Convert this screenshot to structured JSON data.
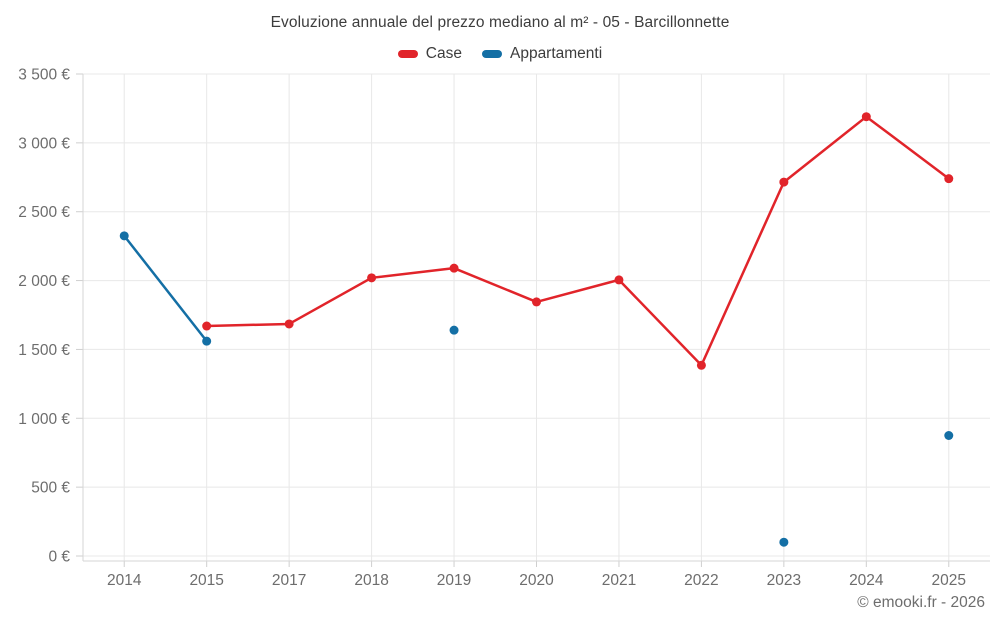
{
  "chart_data": {
    "type": "line",
    "title": "Evoluzione annuale del prezzo mediano al m² - 05 - Barcillonnette",
    "categories": [
      "2014",
      "2015",
      "2017",
      "2018",
      "2019",
      "2020",
      "2021",
      "2022",
      "2023",
      "2024",
      "2025"
    ],
    "series": [
      {
        "name": "Case",
        "color": "#e1242a",
        "values": [
          null,
          1670,
          1685,
          2020,
          2090,
          1845,
          2005,
          1385,
          2715,
          3190,
          2740
        ]
      },
      {
        "name": "Appartamenti",
        "color": "#146fa5",
        "values": [
          2325,
          1560,
          null,
          null,
          1640,
          null,
          null,
          null,
          100,
          null,
          875
        ]
      }
    ],
    "ylim": [
      0,
      3500
    ],
    "y_step": 500,
    "y_tick_labels": [
      "0 €",
      "500 €",
      "1 000 €",
      "1 500 €",
      "2 000 €",
      "2 500 €",
      "3 000 €",
      "3 500 €"
    ],
    "grid": true,
    "legend_position": "top",
    "attribution": "© emooki.fr - 2026",
    "colors": {
      "grid": "#e8e8e8",
      "axis_line": "#d6d6d6",
      "tick": "#cfcfcf",
      "axis_text": "#6d6d6d",
      "title_text": "#3d3d3d"
    }
  }
}
